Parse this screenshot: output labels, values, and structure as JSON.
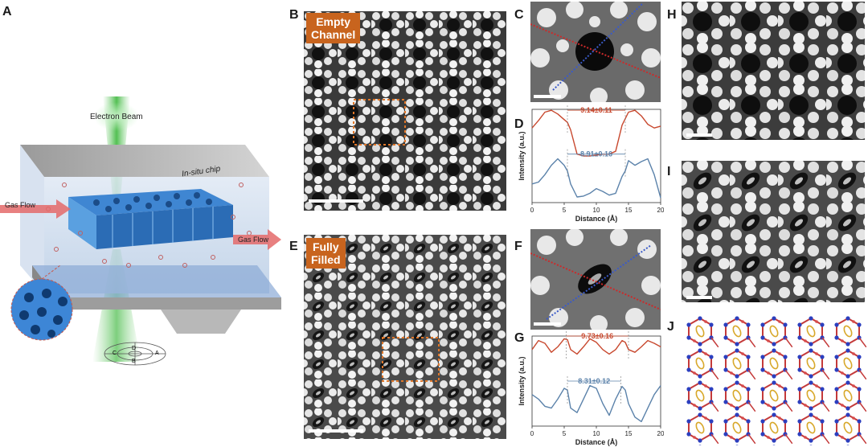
{
  "panels": {
    "a": "A",
    "b": "B",
    "c": "C",
    "d": "D",
    "e": "E",
    "f": "F",
    "g": "G",
    "h": "H",
    "i": "I",
    "j": "J"
  },
  "schematic": {
    "electron_beam": "Electron Beam",
    "chip": "In-situ chip",
    "gas_flow_left": "Gas Flow",
    "gas_flow_right": "Gas Flow",
    "detector": [
      "D",
      "A",
      "B",
      "C"
    ]
  },
  "tags": {
    "empty_line1": "Empty",
    "empty_line2": "Channel",
    "filled_line1": "Fully",
    "filled_line2": "Filled"
  },
  "chart_data": [
    {
      "type": "line",
      "panel": "D",
      "xlabel": "Distance (Å)",
      "ylabel": "Intensity (a.u.)",
      "xlim": [
        0,
        20
      ],
      "xticks": [
        "0",
        "5",
        "10",
        "15",
        "20"
      ],
      "annotations": [
        "9.14±0.11",
        "8.91±0.16"
      ],
      "series": [
        {
          "color": "#c8482e",
          "x": [
            0,
            1,
            2,
            3,
            4,
            5,
            5.5,
            6,
            7,
            8,
            9,
            10,
            11,
            12,
            13,
            14,
            14.5,
            15,
            16,
            17,
            18,
            19,
            20
          ],
          "y": [
            0.8,
            0.88,
            0.97,
            0.99,
            0.95,
            0.89,
            0.86,
            0.78,
            0.52,
            0.5,
            0.5,
            0.51,
            0.52,
            0.52,
            0.55,
            0.83,
            0.9,
            0.97,
            0.99,
            0.93,
            0.84,
            0.8,
            0.82
          ]
        },
        {
          "color": "#5b82aa",
          "x": [
            0,
            1,
            2,
            3,
            4,
            5,
            5.5,
            6,
            7,
            8,
            9,
            10,
            11,
            12,
            13,
            14,
            14.5,
            15,
            16,
            17,
            18,
            19,
            20
          ],
          "y": [
            0.2,
            0.22,
            0.3,
            0.4,
            0.47,
            0.4,
            0.34,
            0.2,
            0.06,
            0.07,
            0.1,
            0.15,
            0.12,
            0.08,
            0.1,
            0.28,
            0.34,
            0.45,
            0.4,
            0.44,
            0.47,
            0.3,
            0.05
          ]
        }
      ]
    },
    {
      "type": "line",
      "panel": "G",
      "xlabel": "Distance (Å)",
      "ylabel": "Intensity (a.u.)",
      "xlim": [
        0,
        20
      ],
      "xticks": [
        "0",
        "5",
        "10",
        "15",
        "20"
      ],
      "annotations": [
        "9.73±0.16",
        "8.31±0.12"
      ],
      "series": [
        {
          "color": "#c8482e",
          "x": [
            0,
            1,
            2,
            3,
            4,
            5,
            5.5,
            6,
            7,
            8,
            9,
            10,
            11,
            12,
            13,
            14,
            14.5,
            15,
            16,
            17,
            18,
            19,
            20
          ],
          "y": [
            0.85,
            0.95,
            0.92,
            0.82,
            0.88,
            0.97,
            0.96,
            0.85,
            0.8,
            0.88,
            0.97,
            0.93,
            0.85,
            0.8,
            0.85,
            0.95,
            0.93,
            0.85,
            0.82,
            0.88,
            0.95,
            0.92,
            0.88
          ]
        },
        {
          "color": "#5b82aa",
          "x": [
            0,
            1,
            2,
            3,
            4,
            5,
            5.5,
            6,
            7,
            8,
            9,
            10,
            11,
            12,
            13,
            14,
            14.5,
            15,
            16,
            17,
            18,
            19,
            20
          ],
          "y": [
            0.35,
            0.3,
            0.22,
            0.2,
            0.3,
            0.42,
            0.4,
            0.2,
            0.15,
            0.3,
            0.45,
            0.42,
            0.25,
            0.12,
            0.3,
            0.44,
            0.4,
            0.25,
            0.1,
            0.05,
            0.2,
            0.35,
            0.45
          ]
        }
      ]
    }
  ]
}
